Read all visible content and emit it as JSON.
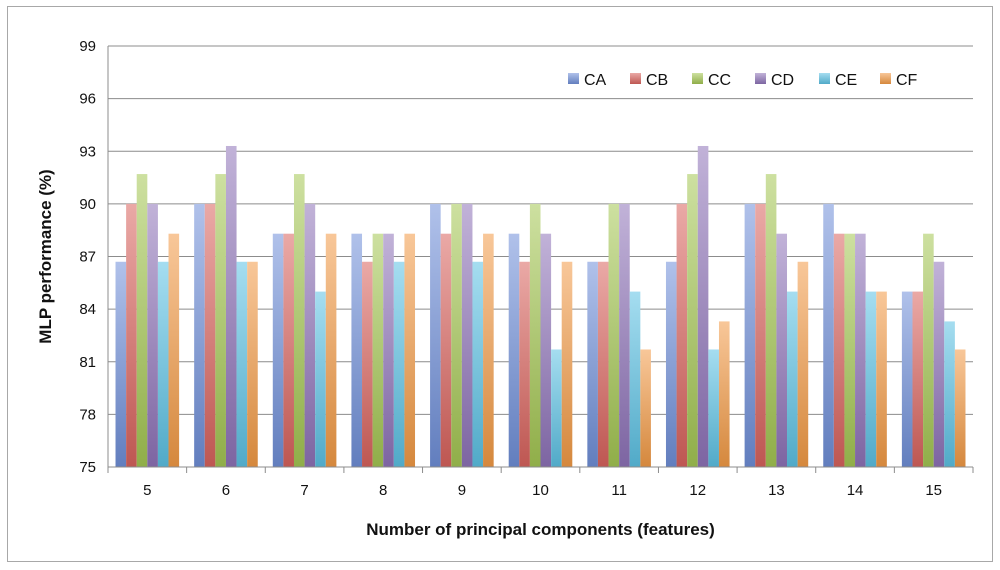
{
  "chart_data": {
    "type": "bar",
    "xlabel": "Number of principal components (features)",
    "ylabel": "MLP performance (%)",
    "ylim": [
      75,
      99
    ],
    "yticks": [
      75,
      78,
      81,
      84,
      87,
      90,
      93,
      96,
      99
    ],
    "grid": true,
    "legend_position": "top-right",
    "categories": [
      "5",
      "6",
      "7",
      "8",
      "9",
      "10",
      "11",
      "12",
      "13",
      "14",
      "15"
    ],
    "series": [
      {
        "name": "CA",
        "color": "#6f8fd8",
        "values": [
          86.7,
          90.0,
          88.3,
          88.3,
          90.0,
          88.3,
          86.7,
          86.7,
          90.0,
          90.0,
          85.0
        ]
      },
      {
        "name": "CB",
        "color": "#d8635d",
        "values": [
          90.0,
          90.0,
          88.3,
          86.7,
          88.3,
          86.7,
          86.7,
          90.0,
          90.0,
          88.3,
          85.0
        ]
      },
      {
        "name": "CC",
        "color": "#a4c653",
        "values": [
          91.7,
          91.7,
          91.7,
          88.3,
          90.0,
          90.0,
          90.0,
          91.7,
          91.7,
          88.3,
          88.3
        ]
      },
      {
        "name": "CD",
        "color": "#8e73b8",
        "values": [
          90.0,
          93.3,
          90.0,
          88.3,
          90.0,
          88.3,
          90.0,
          93.3,
          88.3,
          88.3,
          86.7
        ]
      },
      {
        "name": "CE",
        "color": "#5cc1e3",
        "values": [
          86.7,
          86.7,
          85.0,
          86.7,
          86.7,
          81.7,
          85.0,
          81.7,
          85.0,
          85.0,
          83.3
        ]
      },
      {
        "name": "CF",
        "color": "#f29a45",
        "values": [
          88.3,
          86.7,
          88.3,
          88.3,
          88.3,
          86.7,
          81.7,
          83.3,
          86.7,
          85.0,
          81.7
        ]
      }
    ]
  }
}
